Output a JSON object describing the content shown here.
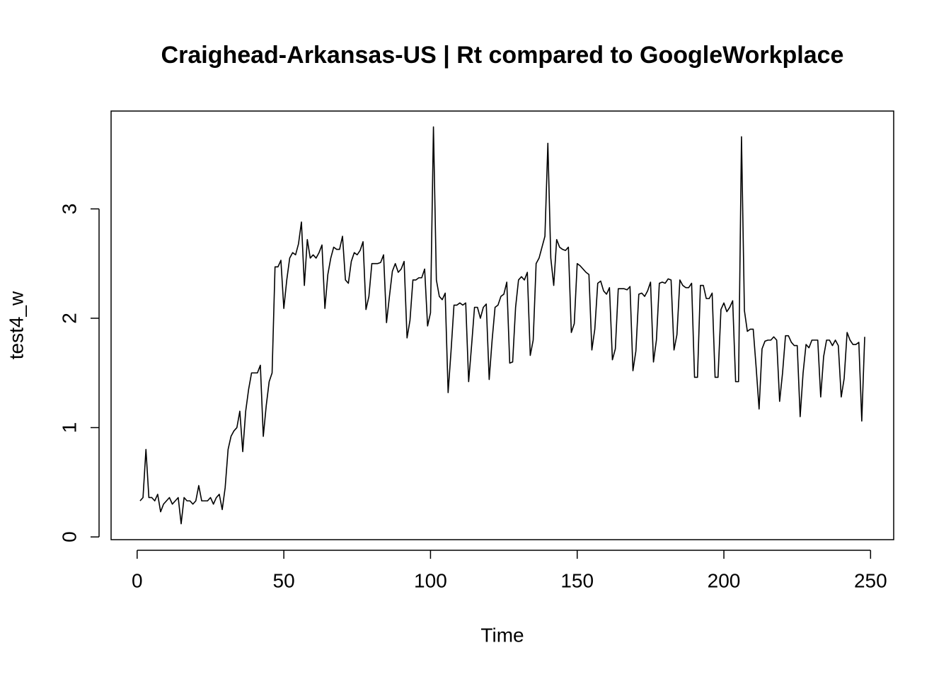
{
  "chart_data": {
    "type": "line",
    "title": "Craighead-Arkansas-US | Rt compared to GoogleWorkplace",
    "x_label": "Time",
    "y_label": "test4_w",
    "xlim": [
      -8.88,
      257.88
    ],
    "ylim": [
      -0.025,
      3.895
    ],
    "xticks": [
      0,
      50,
      100,
      150,
      200,
      250
    ],
    "yticks": [
      0,
      1,
      2,
      3
    ],
    "grid": false,
    "x": [
      1,
      2,
      3,
      4,
      5,
      6,
      7,
      8,
      9,
      10,
      11,
      12,
      13,
      14,
      15,
      16,
      17,
      18,
      19,
      20,
      21,
      22,
      23,
      24,
      25,
      26,
      27,
      28,
      29,
      30,
      31,
      32,
      33,
      34,
      35,
      36,
      37,
      38,
      39,
      40,
      41,
      42,
      43,
      44,
      45,
      46,
      47,
      48,
      49,
      50,
      51,
      52,
      53,
      54,
      55,
      56,
      57,
      58,
      59,
      60,
      61,
      62,
      63,
      64,
      65,
      66,
      67,
      68,
      69,
      70,
      71,
      72,
      73,
      74,
      75,
      76,
      77,
      78,
      79,
      80,
      81,
      82,
      83,
      84,
      85,
      86,
      87,
      88,
      89,
      90,
      91,
      92,
      93,
      94,
      95,
      96,
      97,
      98,
      99,
      100,
      101,
      102,
      103,
      104,
      105,
      106,
      107,
      108,
      109,
      110,
      111,
      112,
      113,
      114,
      115,
      116,
      117,
      118,
      119,
      120,
      121,
      122,
      123,
      124,
      125,
      126,
      127,
      128,
      129,
      130,
      131,
      132,
      133,
      134,
      135,
      136,
      137,
      138,
      139,
      140,
      141,
      142,
      143,
      144,
      145,
      146,
      147,
      148,
      149,
      150,
      151,
      152,
      153,
      154,
      155,
      156,
      157,
      158,
      159,
      160,
      161,
      162,
      163,
      164,
      165,
      166,
      167,
      168,
      169,
      170,
      171,
      172,
      173,
      174,
      175,
      176,
      177,
      178,
      179,
      180,
      181,
      182,
      183,
      184,
      185,
      186,
      187,
      188,
      189,
      190,
      191,
      192,
      193,
      194,
      195,
      196,
      197,
      198,
      199,
      200,
      201,
      202,
      203,
      204,
      205,
      206,
      207,
      208,
      209,
      210,
      211,
      212,
      213,
      214,
      215,
      216,
      217,
      218,
      219,
      220,
      221,
      222,
      223,
      224,
      225,
      226,
      227,
      228,
      229,
      230,
      231,
      232,
      233,
      234,
      235,
      236,
      237,
      238,
      239,
      240,
      241,
      242,
      243,
      244,
      245,
      246,
      247,
      248
    ],
    "series": [
      {
        "name": "test4_w",
        "color": "#000000",
        "values": [
          0.33,
          0.36,
          0.8,
          0.36,
          0.36,
          0.33,
          0.39,
          0.23,
          0.3,
          0.33,
          0.36,
          0.3,
          0.33,
          0.36,
          0.12,
          0.36,
          0.33,
          0.33,
          0.3,
          0.33,
          0.47,
          0.33,
          0.33,
          0.33,
          0.36,
          0.3,
          0.36,
          0.39,
          0.25,
          0.45,
          0.8,
          0.92,
          0.97,
          1.0,
          1.15,
          0.78,
          1.15,
          1.35,
          1.5,
          1.5,
          1.5,
          1.57,
          0.92,
          1.2,
          1.42,
          1.5,
          2.47,
          2.47,
          2.53,
          2.09,
          2.35,
          2.55,
          2.6,
          2.58,
          2.68,
          2.88,
          2.3,
          2.72,
          2.55,
          2.58,
          2.55,
          2.6,
          2.67,
          2.09,
          2.4,
          2.55,
          2.65,
          2.63,
          2.63,
          2.75,
          2.35,
          2.32,
          2.52,
          2.6,
          2.58,
          2.62,
          2.7,
          2.08,
          2.2,
          2.5,
          2.5,
          2.5,
          2.51,
          2.58,
          1.96,
          2.2,
          2.43,
          2.5,
          2.42,
          2.45,
          2.52,
          1.82,
          1.98,
          2.35,
          2.35,
          2.37,
          2.37,
          2.45,
          1.93,
          2.05,
          3.75,
          2.35,
          2.2,
          2.17,
          2.23,
          1.32,
          1.7,
          2.12,
          2.12,
          2.14,
          2.12,
          2.14,
          1.42,
          1.75,
          2.1,
          2.1,
          2.0,
          2.1,
          2.13,
          1.44,
          1.8,
          2.1,
          2.12,
          2.2,
          2.22,
          2.33,
          1.59,
          1.6,
          2.1,
          2.35,
          2.38,
          2.35,
          2.42,
          1.66,
          1.8,
          2.5,
          2.55,
          2.65,
          2.75,
          3.6,
          2.55,
          2.3,
          2.72,
          2.65,
          2.63,
          2.62,
          2.65,
          1.87,
          1.95,
          2.5,
          2.48,
          2.45,
          2.42,
          2.4,
          1.71,
          1.9,
          2.32,
          2.34,
          2.25,
          2.22,
          2.28,
          1.62,
          1.72,
          2.27,
          2.27,
          2.27,
          2.26,
          2.29,
          1.52,
          1.7,
          2.22,
          2.23,
          2.2,
          2.25,
          2.33,
          1.6,
          1.8,
          2.32,
          2.33,
          2.32,
          2.36,
          2.35,
          1.71,
          1.85,
          2.35,
          2.3,
          2.28,
          2.28,
          2.32,
          1.46,
          1.46,
          2.3,
          2.3,
          2.18,
          2.18,
          2.23,
          1.46,
          1.46,
          2.08,
          2.14,
          2.06,
          2.1,
          2.16,
          1.42,
          1.42,
          3.66,
          2.07,
          1.88,
          1.9,
          1.9,
          1.55,
          1.17,
          1.72,
          1.79,
          1.8,
          1.8,
          1.83,
          1.8,
          1.24,
          1.5,
          1.84,
          1.84,
          1.78,
          1.75,
          1.75,
          1.1,
          1.5,
          1.76,
          1.73,
          1.8,
          1.8,
          1.8,
          1.28,
          1.65,
          1.8,
          1.8,
          1.75,
          1.8,
          1.75,
          1.28,
          1.45,
          1.87,
          1.8,
          1.76,
          1.76,
          1.78,
          1.06,
          1.83
        ]
      }
    ]
  }
}
